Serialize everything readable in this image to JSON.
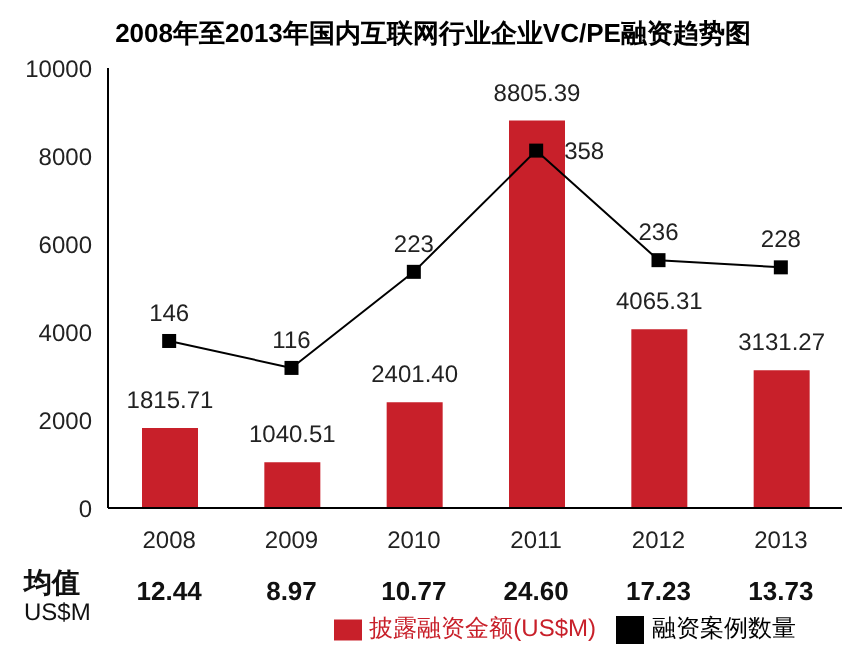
{
  "chart_data": {
    "type": "bar",
    "title": "2008年至2013年国内互联网行业企业VC/PE融资趋势图",
    "categories": [
      "2008",
      "2009",
      "2010",
      "2011",
      "2012",
      "2013"
    ],
    "series": [
      {
        "name": "披露融资金额(US$M)",
        "color": "#c8202a",
        "values": [
          1815.71,
          1040.51,
          2401.4,
          8805.39,
          4065.31,
          3131.27
        ],
        "value_labels": [
          "1815.71",
          "1040.51",
          "2401.40",
          "8805.39",
          "4065.31",
          "3131.27"
        ]
      },
      {
        "name": "融资案例数量",
        "type": "line",
        "axis": "y2",
        "color": "#000000",
        "marker": "square",
        "values": [
          146,
          116,
          223,
          358,
          236,
          228
        ],
        "value_labels": [
          "146",
          "116",
          "223",
          "358",
          "236",
          "228"
        ]
      }
    ],
    "ylim": [
      0,
      10000
    ],
    "yticks": [
      0,
      2000,
      4000,
      6000,
      8000,
      10000
    ],
    "y2lim": [
      -40,
      450
    ],
    "legend": "bottom",
    "annotations": [
      "均值",
      "US$M",
      "12.44",
      "8.97",
      "10.77",
      "24.60",
      "17.23",
      "13.73"
    ]
  }
}
